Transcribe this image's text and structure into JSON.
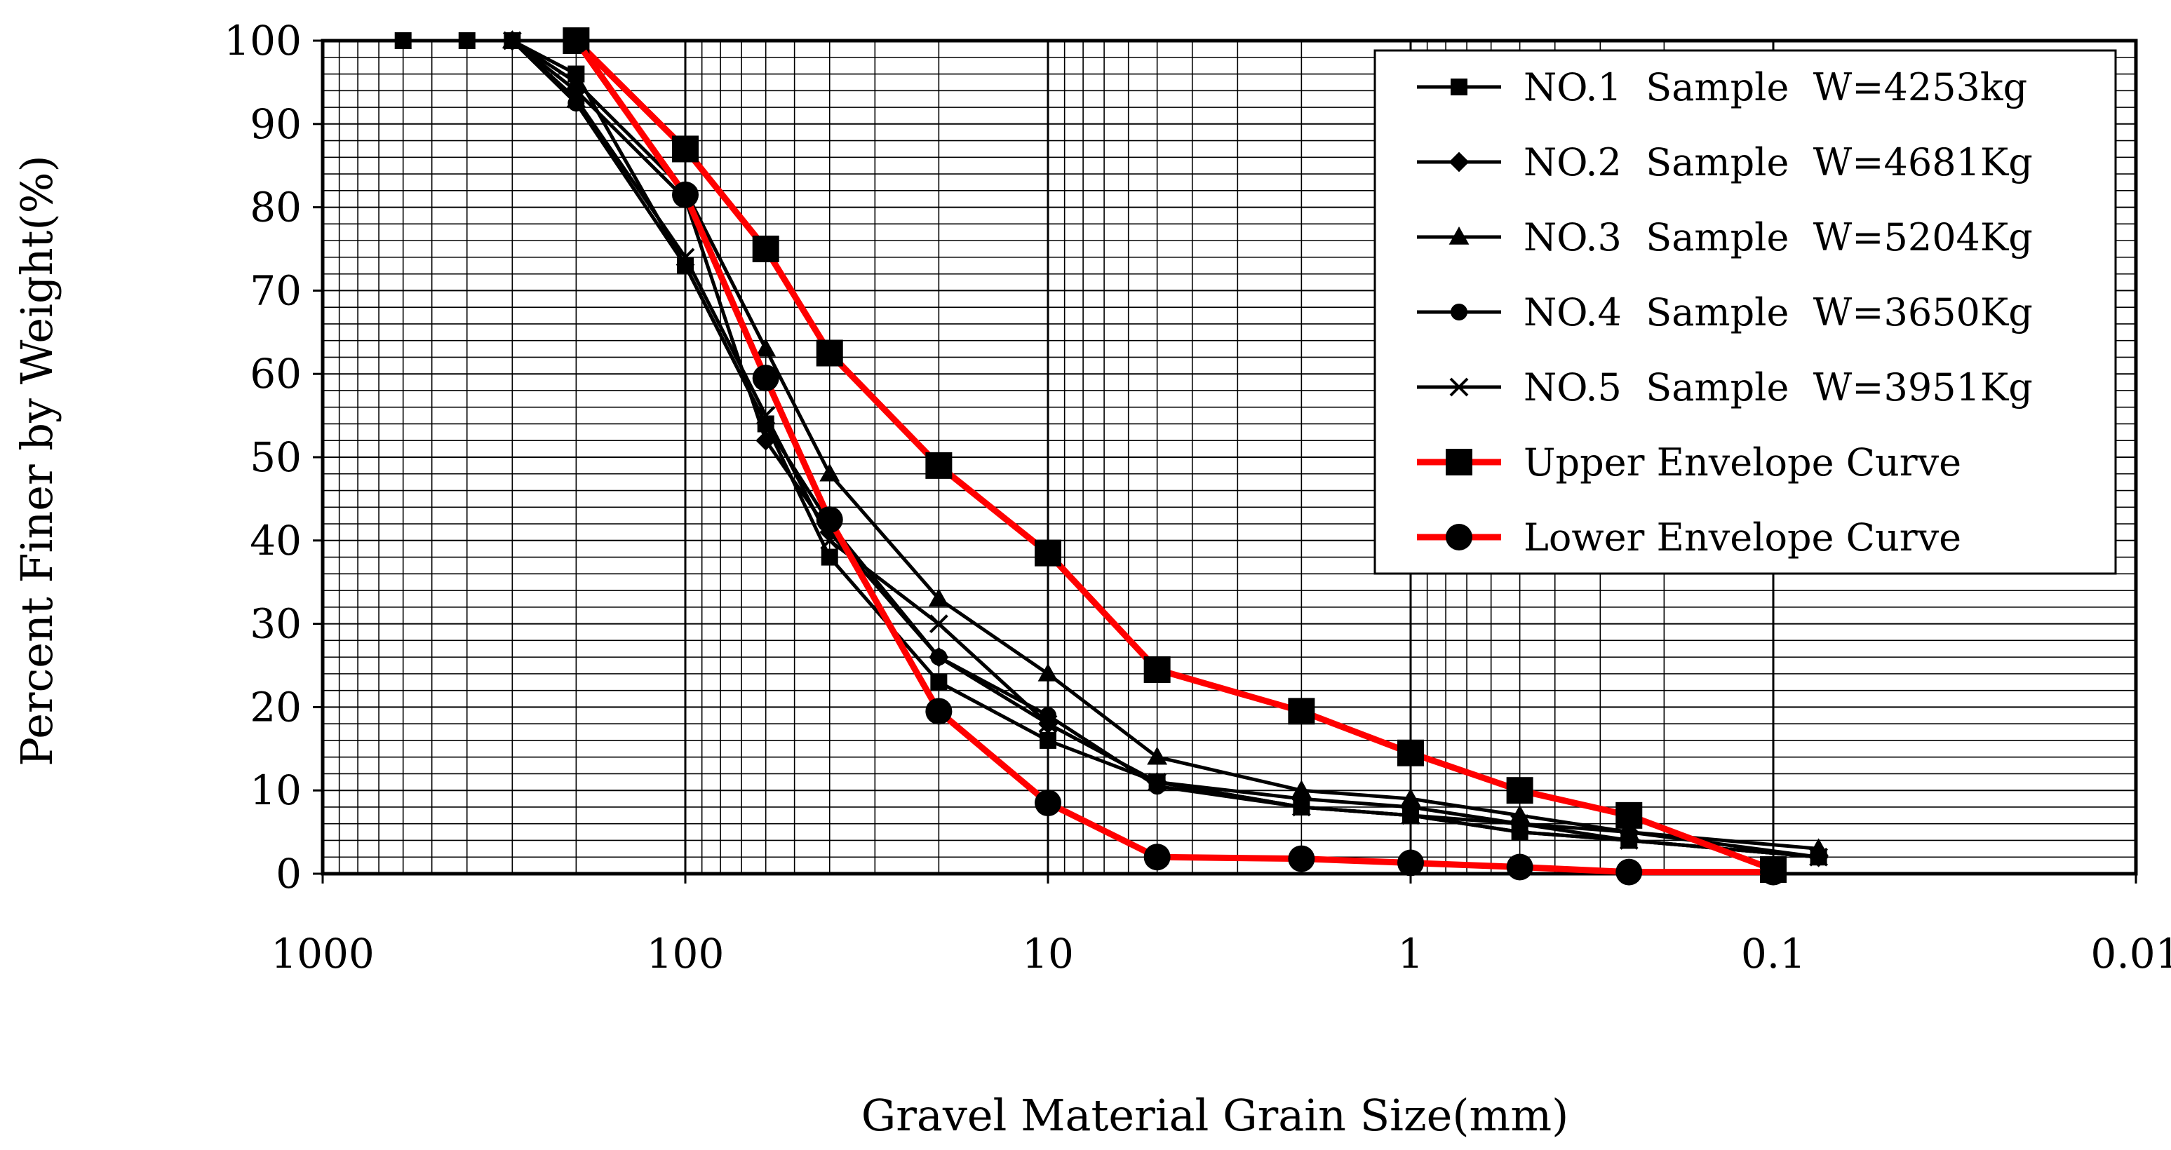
{
  "chart_data": {
    "type": "line",
    "xscale": "log",
    "x_reversed": true,
    "xlim": [
      1000,
      0.01
    ],
    "ylim": [
      0,
      100
    ],
    "xlabel": "Gravel Material Grain Size(mm)",
    "ylabel": "Percent Finer by Weight(%)",
    "x_tick_values": [
      1000,
      100,
      10,
      1,
      0.1,
      0.01
    ],
    "x_tick_labels": [
      "1000",
      "100",
      "10",
      "1",
      "0.1",
      "0.01"
    ],
    "y_tick_values": [
      0,
      10,
      20,
      30,
      40,
      50,
      60,
      70,
      80,
      90,
      100
    ],
    "y_tick_labels": [
      "0",
      "10",
      "20",
      "30",
      "40",
      "50",
      "60",
      "70",
      "80",
      "90",
      "100"
    ],
    "grid": true,
    "legend_position": "top-right",
    "series": [
      {
        "name": "NO.1  Sample  W=4253kg",
        "color": "#000000",
        "marker": "square",
        "x": [
          600,
          400,
          300,
          200,
          100,
          60,
          40,
          20,
          10,
          5,
          2,
          1,
          0.5,
          0.25,
          0.075
        ],
        "y": [
          100,
          100,
          100,
          96,
          73,
          54,
          38,
          23,
          16,
          11,
          8,
          7,
          5,
          4,
          2
        ]
      },
      {
        "name": "NO.2  Sample  W=4681Kg",
        "color": "#000000",
        "marker": "diamond",
        "x": [
          300,
          200,
          100,
          60,
          40,
          20,
          10,
          5,
          2,
          1,
          0.5,
          0.25,
          0.075
        ],
        "y": [
          100,
          94,
          81,
          52,
          41,
          26,
          18,
          11,
          9,
          8,
          6,
          5,
          2
        ]
      },
      {
        "name": "NO.3  Sample  W=5204Kg",
        "color": "#000000",
        "marker": "triangle",
        "x": [
          300,
          200,
          100,
          60,
          40,
          20,
          10,
          5,
          2,
          1,
          0.5,
          0.25,
          0.075
        ],
        "y": [
          100,
          95,
          82,
          63,
          48,
          33,
          24,
          14,
          10,
          9,
          7,
          5,
          3
        ]
      },
      {
        "name": "NO.4  Sample  W=3650Kg",
        "color": "#000000",
        "marker": "circle",
        "x": [
          300,
          200,
          100,
          60,
          40,
          20,
          10,
          5,
          2,
          1,
          0.5,
          0.25,
          0.075
        ],
        "y": [
          100,
          92.5,
          73,
          54,
          42,
          26,
          19,
          10.5,
          8,
          7,
          5,
          4,
          2
        ]
      },
      {
        "name": "NO.5  Sample  W=3951Kg",
        "color": "#000000",
        "marker": "x",
        "x": [
          300,
          200,
          100,
          60,
          40,
          20,
          10,
          5,
          2,
          1,
          0.5,
          0.25,
          0.075
        ],
        "y": [
          100,
          93,
          74,
          55,
          40,
          30,
          18,
          11,
          8,
          7,
          6,
          4,
          2
        ]
      },
      {
        "name": "Upper Envelope Curve",
        "color": "#ff0000",
        "marker": "square",
        "x": [
          200,
          100,
          60,
          40,
          20,
          10,
          5,
          2,
          1,
          0.5,
          0.25,
          0.1
        ],
        "y": [
          100,
          87,
          75,
          62.5,
          49,
          38.5,
          24.5,
          19.5,
          14.5,
          10,
          7,
          0.5
        ]
      },
      {
        "name": "Lower Envelope Curve",
        "color": "#ff0000",
        "marker": "circle",
        "x": [
          200,
          100,
          60,
          40,
          20,
          10,
          5,
          2,
          1,
          0.5,
          0.25,
          0.1
        ],
        "y": [
          100,
          81.5,
          59.5,
          42.5,
          19.5,
          8.5,
          2,
          1.8,
          1.3,
          0.8,
          0.2,
          0.2
        ]
      }
    ]
  }
}
